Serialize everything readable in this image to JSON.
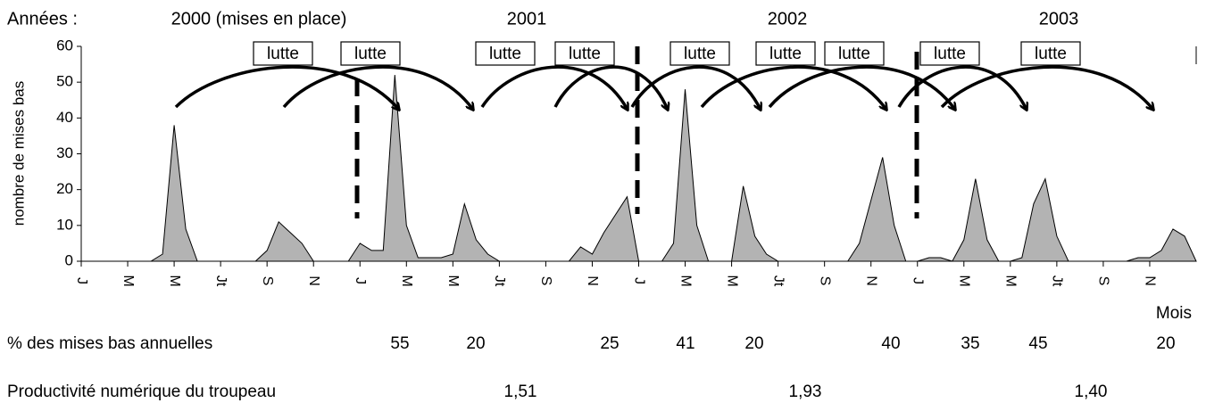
{
  "chart_data": {
    "type": "area",
    "years_label": "Années :",
    "years": [
      "2000 (mises en place)",
      "2001",
      "2002",
      "2003"
    ],
    "ylabel": "nombre de mises  bas",
    "xlabel": "Mois",
    "x": [
      0,
      3,
      3.5,
      4,
      4.5,
      5,
      7.5,
      8,
      8.5,
      9,
      9.5,
      10,
      11.5,
      12,
      12.5,
      13,
      13.5,
      14,
      14.5,
      15,
      15.5,
      16,
      16.5,
      17,
      17.5,
      18,
      21,
      21.5,
      22,
      22.5,
      23.5,
      24,
      25,
      25.5,
      26,
      26.5,
      27,
      28,
      28.5,
      29,
      29.5,
      30,
      33,
      33.5,
      34.5,
      35,
      35.5,
      36,
      36.5,
      37,
      37.5,
      38,
      38.5,
      39,
      39.5,
      40,
      40.5,
      41,
      41.5,
      42,
      42.5,
      45,
      45.5,
      46,
      46.5,
      47,
      47.5,
      48
    ],
    "values": [
      0,
      0,
      2,
      38,
      9,
      0,
      0,
      3,
      11,
      8,
      5,
      0,
      0,
      5,
      3,
      3,
      52,
      10,
      1,
      1,
      1,
      2,
      16,
      6,
      2,
      0,
      0,
      4,
      2,
      8,
      18,
      0,
      0,
      5,
      48,
      10,
      0,
      0,
      21,
      7,
      2,
      0,
      0,
      5,
      29,
      10,
      0,
      0,
      1,
      1,
      0,
      6,
      23,
      6,
      0,
      0,
      1,
      16,
      23,
      7,
      0,
      0,
      1,
      1,
      3,
      9,
      7,
      0
    ],
    "color": "#b3b3b3",
    "xlim": [
      0,
      48
    ],
    "xticks": [
      {
        "value": 0,
        "label": "J"
      },
      {
        "value": 2,
        "label": "M"
      },
      {
        "value": 4,
        "label": "M"
      },
      {
        "value": 6,
        "label": "Jt"
      },
      {
        "value": 8,
        "label": "S"
      },
      {
        "value": 10,
        "label": "N"
      },
      {
        "value": 12,
        "label": "J"
      },
      {
        "value": 14,
        "label": "M"
      },
      {
        "value": 16,
        "label": "M"
      },
      {
        "value": 18,
        "label": "Jt"
      },
      {
        "value": 20,
        "label": "S"
      },
      {
        "value": 22,
        "label": "N"
      },
      {
        "value": 24,
        "label": "J"
      },
      {
        "value": 26,
        "label": "M"
      },
      {
        "value": 28,
        "label": "M"
      },
      {
        "value": 30,
        "label": "Jt"
      },
      {
        "value": 32,
        "label": "S"
      },
      {
        "value": 34,
        "label": "N"
      },
      {
        "value": 36,
        "label": "J"
      },
      {
        "value": 38,
        "label": "M"
      },
      {
        "value": 40,
        "label": "M"
      },
      {
        "value": 42,
        "label": "Jt"
      },
      {
        "value": 44,
        "label": "S"
      },
      {
        "value": 46,
        "label": "N"
      }
    ],
    "ylim": [
      0,
      60
    ],
    "yticks": [
      0,
      10,
      20,
      30,
      40,
      50,
      60
    ],
    "lutte_labels": [
      "lutte",
      "lutte",
      "lutte",
      "lutte",
      "lutte",
      "lutte",
      "lutte",
      "lutte",
      "lutte"
    ],
    "percent_row": {
      "label": "% des mises bas annuelles",
      "values": [
        55,
        20,
        25,
        41,
        20,
        40,
        35,
        45,
        20
      ]
    },
    "productivity_row": {
      "label": "Productivité numérique du troupeau",
      "values": [
        1.51,
        1.93,
        1.4
      ],
      "value_labels": [
        "1,51",
        "1,93",
        "1,40"
      ]
    }
  }
}
